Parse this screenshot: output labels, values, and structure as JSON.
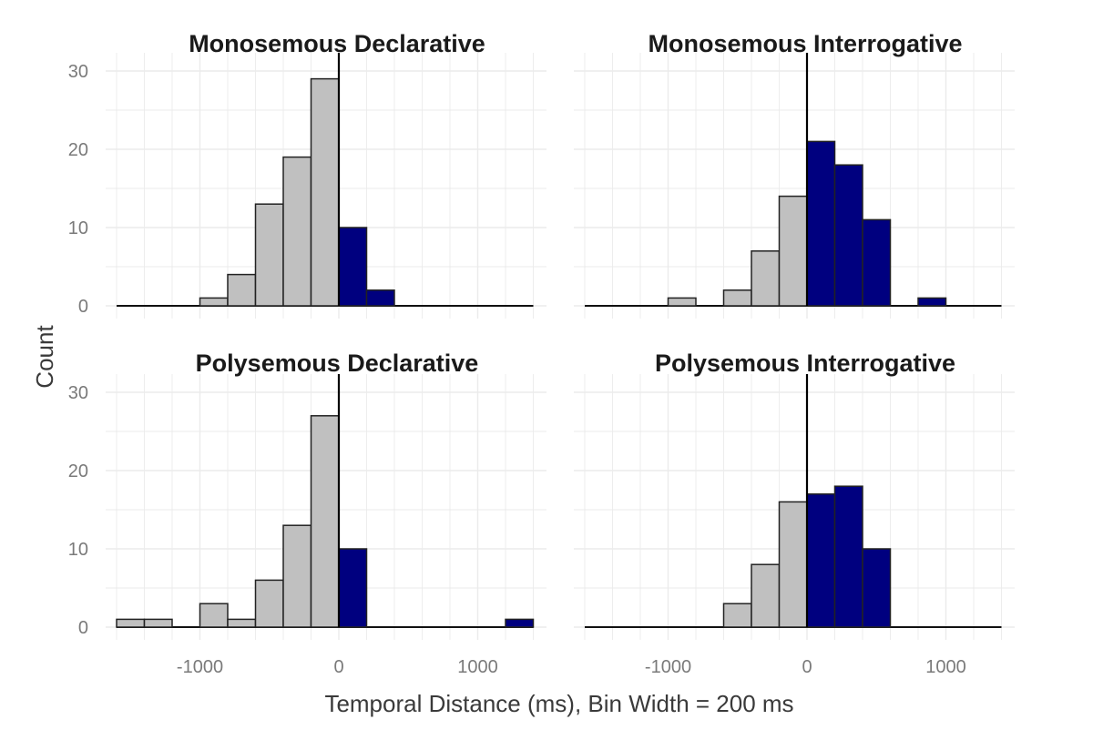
{
  "chart_data": {
    "type": "bar",
    "xlabel": "Temporal Distance (ms), Bin Width = 200 ms",
    "ylabel": "Count",
    "bin_width": 200,
    "xlim": [
      -1600,
      1400
    ],
    "ylim": [
      0,
      30
    ],
    "x_ticks": [
      -1000,
      0,
      1000
    ],
    "y_ticks": [
      0,
      10,
      20,
      30
    ],
    "grid": true,
    "vline_at": 0,
    "colors": {
      "negative": "#c0c0c0",
      "positive": "#00007f",
      "edge": "#222222",
      "grid": "#ebebeb",
      "zero_line": "#000000"
    },
    "panels": [
      {
        "title": "Monosemous Declarative",
        "bins": [
          {
            "start": -1000,
            "count": 1
          },
          {
            "start": -800,
            "count": 4
          },
          {
            "start": -600,
            "count": 13
          },
          {
            "start": -400,
            "count": 19
          },
          {
            "start": -200,
            "count": 29
          },
          {
            "start": 0,
            "count": 10
          },
          {
            "start": 200,
            "count": 2
          }
        ]
      },
      {
        "title": "Monosemous Interrogative",
        "bins": [
          {
            "start": -1000,
            "count": 1
          },
          {
            "start": -600,
            "count": 2
          },
          {
            "start": -400,
            "count": 7
          },
          {
            "start": -200,
            "count": 14
          },
          {
            "start": 0,
            "count": 21
          },
          {
            "start": 200,
            "count": 18
          },
          {
            "start": 400,
            "count": 11
          },
          {
            "start": 800,
            "count": 1
          }
        ]
      },
      {
        "title": "Polysemous Declarative",
        "bins": [
          {
            "start": -1600,
            "count": 1
          },
          {
            "start": -1400,
            "count": 1
          },
          {
            "start": -1000,
            "count": 3
          },
          {
            "start": -800,
            "count": 1
          },
          {
            "start": -600,
            "count": 6
          },
          {
            "start": -400,
            "count": 13
          },
          {
            "start": -200,
            "count": 27
          },
          {
            "start": 0,
            "count": 10
          },
          {
            "start": 1200,
            "count": 1
          }
        ]
      },
      {
        "title": "Polysemous Interrogative",
        "bins": [
          {
            "start": -600,
            "count": 3
          },
          {
            "start": -400,
            "count": 8
          },
          {
            "start": -200,
            "count": 16
          },
          {
            "start": 0,
            "count": 17
          },
          {
            "start": 200,
            "count": 18
          },
          {
            "start": 400,
            "count": 10
          }
        ]
      }
    ]
  }
}
